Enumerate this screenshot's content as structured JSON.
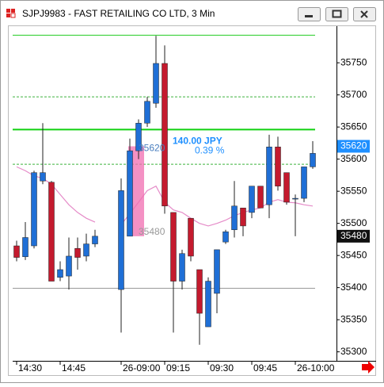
{
  "chart_data": {
    "type": "candlestick",
    "title": "SJPJ9983 - FAST RETAILING CO LTD, 3 Min",
    "categories": [
      "14:30",
      null,
      null,
      null,
      null,
      "14:45",
      null,
      null,
      null,
      null,
      null,
      null,
      "26-09:00",
      null,
      null,
      null,
      null,
      "09:15",
      null,
      null,
      null,
      null,
      "09:30",
      null,
      null,
      null,
      null,
      "09:45",
      null,
      null,
      null,
      null,
      "26-10:00",
      null,
      null
    ],
    "ohlc": [
      {
        "open": 35465,
        "high": 35473,
        "low": 35441,
        "close": 35447
      },
      {
        "open": 35448,
        "high": 35502,
        "low": 35443,
        "close": 35478
      },
      {
        "open": 35465,
        "high": 35582,
        "low": 35461,
        "close": 35579
      },
      {
        "open": 35566,
        "high": 35656,
        "low": 35561,
        "close": 35579
      },
      {
        "open": 35564,
        "high": 35566,
        "low": 35410,
        "close": 35410
      },
      {
        "open": 35416,
        "high": 35441,
        "low": 35410,
        "close": 35428
      },
      {
        "open": 35418,
        "high": 35478,
        "low": 35397,
        "close": 35449
      },
      {
        "open": 35461,
        "high": 35478,
        "low": 35428,
        "close": 35447
      },
      {
        "open": 35449,
        "high": 35484,
        "low": 35441,
        "close": 35468
      },
      {
        "open": 35468,
        "high": 35490,
        "low": 35463,
        "close": 35480
      },
      null,
      null,
      {
        "open": 35397,
        "high": 35570,
        "low": 35330,
        "close": 35551
      },
      {
        "open": 35480,
        "high": 35632,
        "low": 35480,
        "close": 35613
      },
      {
        "open": 35613,
        "high": 35662,
        "low": 35600,
        "close": 35656
      },
      {
        "open": 35656,
        "high": 35697,
        "low": 35650,
        "close": 35690
      },
      {
        "open": 35687,
        "high": 35792,
        "low": 35680,
        "close": 35749
      },
      {
        "open": 35749,
        "high": 35777,
        "low": 35515,
        "close": 35527
      },
      {
        "open": 35517,
        "high": 35517,
        "low": 35330,
        "close": 35410
      },
      {
        "open": 35410,
        "high": 35459,
        "low": 35397,
        "close": 35453
      },
      {
        "open": 35508,
        "high": 35508,
        "low": 35441,
        "close": 35449
      },
      {
        "open": 35428,
        "high": 35428,
        "low": 35311,
        "close": 35360
      },
      {
        "open": 35339,
        "high": 35416,
        "low": 35339,
        "close": 35410
      },
      {
        "open": 35391,
        "high": 35459,
        "low": 35360,
        "close": 35459
      },
      {
        "open": 35471,
        "high": 35490,
        "low": 35468,
        "close": 35487
      },
      {
        "open": 35490,
        "high": 35566,
        "low": 35478,
        "close": 35527
      },
      {
        "open": 35524,
        "high": 35524,
        "low": 35480,
        "close": 35496
      },
      {
        "open": 35517,
        "high": 35558,
        "low": 35508,
        "close": 35558
      },
      {
        "open": 35558,
        "high": 35558,
        "low": 35527,
        "close": 35524
      },
      {
        "open": 35529,
        "high": 35638,
        "low": 35508,
        "close": 35619
      },
      {
        "open": 35619,
        "high": 35635,
        "low": 35551,
        "close": 35558
      },
      {
        "open": 35579,
        "high": 35579,
        "low": 35529,
        "close": 35533
      },
      {
        "open": 35539,
        "high": 35545,
        "low": 35480,
        "close": 35539
      },
      {
        "open": 35539,
        "high": 35588,
        "low": 35533,
        "close": 35588
      },
      {
        "open": 35588,
        "high": 35628,
        "low": 35585,
        "close": 35609
      }
    ],
    "up_color": "#1f6fd6",
    "down_color": "#c41a2e",
    "moving_average": {
      "color": "#e58bc8",
      "values": [
        35588,
        35582,
        35574,
        35570,
        35561,
        35545,
        35529,
        35517,
        35508,
        35502,
        null,
        null,
        35498,
        35515,
        35533,
        35551,
        35558,
        35533,
        35521,
        35517,
        35508,
        35500,
        35496,
        35500,
        35505,
        35512,
        35517,
        35521,
        35524,
        35533,
        35537,
        35533,
        35532,
        35529,
        35527
      ]
    },
    "levels": [
      {
        "value": 35793,
        "color": "#22cc22",
        "dashed": false
      },
      {
        "value": 35697,
        "color": "#3cb43c",
        "dashed": true
      },
      {
        "value": 35646,
        "color": "#10d010",
        "dashed": false
      },
      {
        "value": 35592,
        "color": "#3cb43c",
        "dashed": true
      },
      {
        "value": 35399,
        "color": "#999999",
        "dashed": false
      }
    ],
    "measure": {
      "from": 35480,
      "to": 35620,
      "change_label": "140.00  JPY",
      "pct_label": "0.39 %"
    },
    "price_markers": [
      {
        "value": 35620,
        "color": "#1e8fff"
      },
      {
        "value": 35480,
        "color": "#111111"
      }
    ],
    "ylim": [
      35286,
      35807
    ],
    "yticks": [
      35300,
      35350,
      35400,
      35450,
      35500,
      35550,
      35600,
      35650,
      35700,
      35750
    ]
  }
}
